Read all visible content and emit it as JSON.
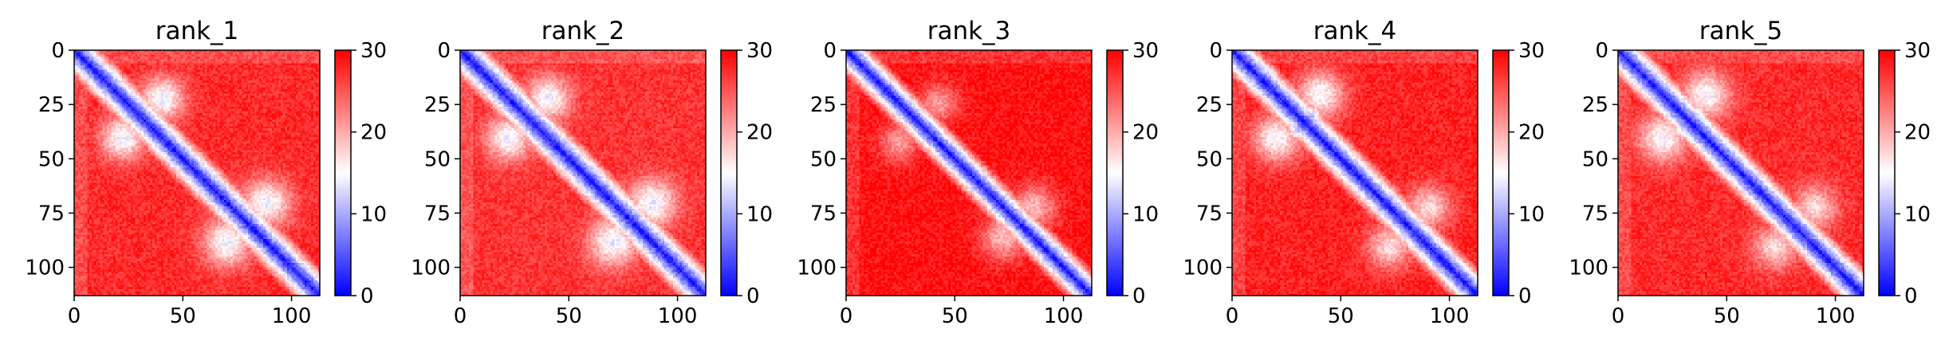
{
  "figure": {
    "panel_count": 5
  },
  "colormap": {
    "name": "bwr",
    "low": "#0000ff",
    "mid": "#ffffff",
    "high": "#ff0000"
  },
  "chart_data": [
    {
      "type": "heatmap",
      "title": "rank_1",
      "matrix_size": 113,
      "xlim": [
        0,
        113
      ],
      "ylim": [
        113,
        0
      ],
      "x_ticks": [
        0,
        50,
        100
      ],
      "y_ticks": [
        0,
        25,
        50,
        75,
        100
      ],
      "x_tick_labels": [
        "0",
        "50",
        "100"
      ],
      "y_tick_labels": [
        "0",
        "25",
        "50",
        "75",
        "100"
      ],
      "colorbar": {
        "min": 0,
        "max": 30,
        "ticks": [
          0,
          10,
          20,
          30
        ],
        "labels": [
          "0",
          "10",
          "20",
          "30"
        ]
      },
      "features": {
        "diagonal_width": 4.5,
        "background": 27.5,
        "contacts": [
          {
            "i": 22,
            "j": 40,
            "value": 14,
            "radius": 10
          },
          {
            "i": 32,
            "j": 36,
            "value": 13,
            "radius": 5
          },
          {
            "i": 70,
            "j": 88,
            "value": 14,
            "radius": 11
          },
          {
            "i": 80,
            "j": 84,
            "value": 12,
            "radius": 5
          }
        ]
      }
    },
    {
      "type": "heatmap",
      "title": "rank_2",
      "matrix_size": 113,
      "xlim": [
        0,
        113
      ],
      "ylim": [
        113,
        0
      ],
      "x_ticks": [
        0,
        50,
        100
      ],
      "y_ticks": [
        0,
        25,
        50,
        75,
        100
      ],
      "x_tick_labels": [
        "0",
        "50",
        "100"
      ],
      "y_tick_labels": [
        "0",
        "25",
        "50",
        "75",
        "100"
      ],
      "colorbar": {
        "min": 0,
        "max": 30,
        "ticks": [
          0,
          10,
          20,
          30
        ],
        "labels": [
          "0",
          "10",
          "20",
          "30"
        ]
      },
      "features": {
        "diagonal_width": 4.5,
        "background": 27,
        "contacts": [
          {
            "i": 22,
            "j": 40,
            "value": 14,
            "radius": 10
          },
          {
            "i": 32,
            "j": 36,
            "value": 13,
            "radius": 5
          },
          {
            "i": 70,
            "j": 88,
            "value": 14,
            "radius": 11
          },
          {
            "i": 80,
            "j": 84,
            "value": 13,
            "radius": 5
          }
        ]
      }
    },
    {
      "type": "heatmap",
      "title": "rank_3",
      "matrix_size": 113,
      "xlim": [
        0,
        113
      ],
      "ylim": [
        113,
        0
      ],
      "x_ticks": [
        0,
        50,
        100
      ],
      "y_ticks": [
        0,
        25,
        50,
        75,
        100
      ],
      "x_tick_labels": [
        "0",
        "50",
        "100"
      ],
      "y_tick_labels": [
        "0",
        "25",
        "50",
        "75",
        "100"
      ],
      "colorbar": {
        "min": 0,
        "max": 30,
        "ticks": [
          0,
          10,
          20,
          30
        ],
        "labels": [
          "0",
          "10",
          "20",
          "30"
        ]
      },
      "features": {
        "diagonal_width": 4.2,
        "background": 29,
        "contacts": [
          {
            "i": 24,
            "j": 42,
            "value": 21,
            "radius": 9
          },
          {
            "i": 72,
            "j": 86,
            "value": 19,
            "radius": 10
          }
        ]
      }
    },
    {
      "type": "heatmap",
      "title": "rank_4",
      "matrix_size": 113,
      "xlim": [
        0,
        113
      ],
      "ylim": [
        113,
        0
      ],
      "x_ticks": [
        0,
        50,
        100
      ],
      "y_ticks": [
        0,
        25,
        50,
        75,
        100
      ],
      "x_tick_labels": [
        "0",
        "50",
        "100"
      ],
      "y_tick_labels": [
        "0",
        "25",
        "50",
        "75",
        "100"
      ],
      "colorbar": {
        "min": 0,
        "max": 30,
        "ticks": [
          0,
          10,
          20,
          30
        ],
        "labels": [
          "0",
          "10",
          "20",
          "30"
        ]
      },
      "features": {
        "diagonal_width": 4.5,
        "background": 28,
        "contacts": [
          {
            "i": 20,
            "j": 40,
            "value": 15,
            "radius": 11
          },
          {
            "i": 30,
            "j": 36,
            "value": 11,
            "radius": 5
          },
          {
            "i": 72,
            "j": 90,
            "value": 17,
            "radius": 10
          }
        ]
      }
    },
    {
      "type": "heatmap",
      "title": "rank_5",
      "matrix_size": 113,
      "xlim": [
        0,
        113
      ],
      "ylim": [
        113,
        0
      ],
      "x_ticks": [
        0,
        50,
        100
      ],
      "y_ticks": [
        0,
        25,
        50,
        75,
        100
      ],
      "x_tick_labels": [
        "0",
        "50",
        "100"
      ],
      "y_tick_labels": [
        "0",
        "25",
        "50",
        "75",
        "100"
      ],
      "colorbar": {
        "min": 0,
        "max": 30,
        "ticks": [
          0,
          10,
          20,
          30
        ],
        "labels": [
          "0",
          "10",
          "20",
          "30"
        ]
      },
      "features": {
        "diagonal_width": 4.5,
        "background": 27.5,
        "contacts": [
          {
            "i": 20,
            "j": 40,
            "value": 15,
            "radius": 11
          },
          {
            "i": 30,
            "j": 36,
            "value": 12,
            "radius": 5
          },
          {
            "i": 72,
            "j": 90,
            "value": 17,
            "radius": 10
          }
        ]
      }
    }
  ]
}
